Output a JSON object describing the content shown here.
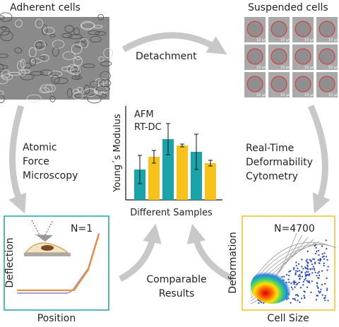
{
  "panels": {
    "adherent": {
      "title": "Adherent cells",
      "scale": "50 µm"
    },
    "suspended": {
      "title": "Suspended cells",
      "scale": "10 µm"
    }
  },
  "arrows": {
    "top": "Detachment",
    "left": [
      "Atomic",
      "Force",
      "Microscopy"
    ],
    "right": [
      "Real-Time",
      "Deformability",
      "Cytometry"
    ],
    "bottom": [
      "Comparable",
      "Results"
    ]
  },
  "afm_plot": {
    "label": "N=1",
    "xlabel": "Position",
    "ylabel": "Deflection"
  },
  "rtdc_plot": {
    "label": "N=4700",
    "xlabel": "Cell Size",
    "ylabel": "Deformation"
  },
  "chart_data": {
    "type": "bar",
    "ylabel": "Young´s Modulus",
    "xlabel": "Different Samples",
    "ylim": [
      0,
      133
    ],
    "series": [
      {
        "name": "AFM",
        "color": "#1aa3a8",
        "values": [
          43,
          86,
          68
        ],
        "errors": [
          20,
          22,
          25
        ]
      },
      {
        "name": "RT-DC",
        "color": "#f7c21a",
        "values": [
          61,
          77,
          52
        ],
        "errors": [
          9,
          2,
          4
        ]
      }
    ]
  }
}
